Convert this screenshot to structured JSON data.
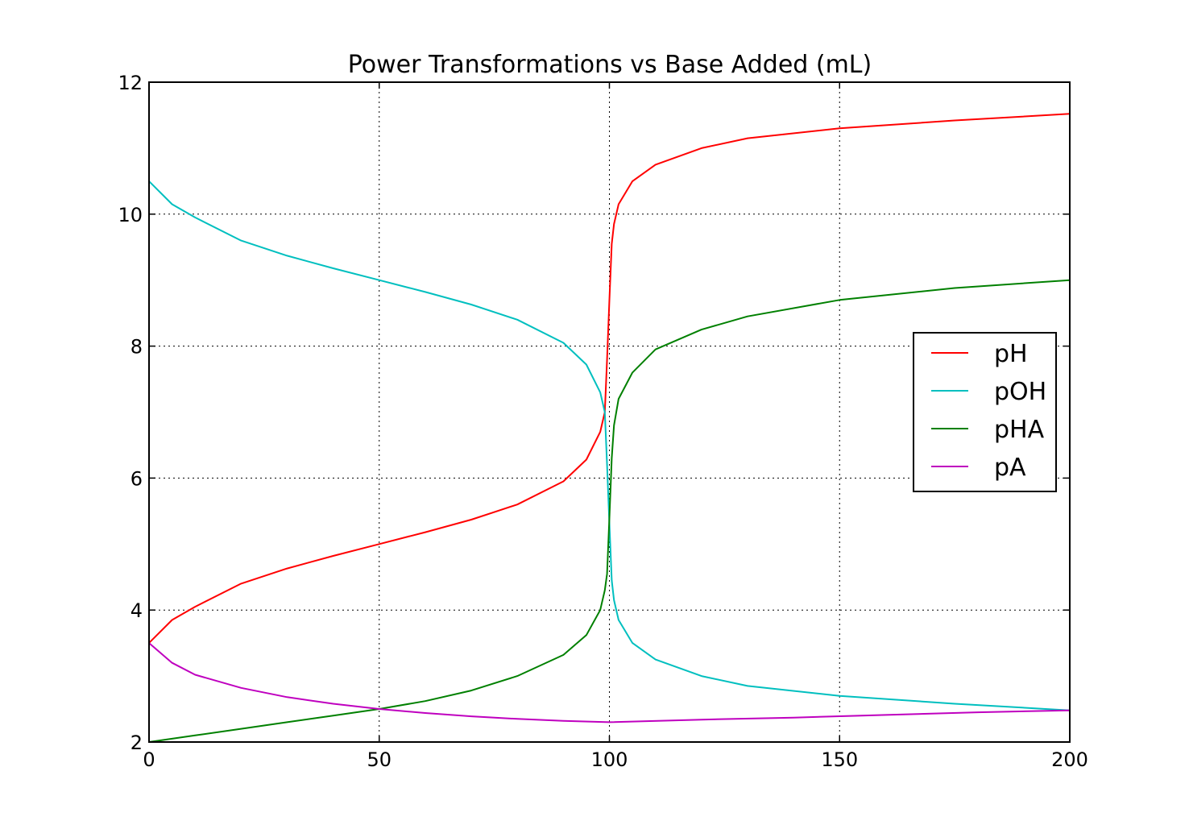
{
  "chart_data": {
    "type": "line",
    "title": "Power Transformations vs Base Added (mL)",
    "xlabel": "",
    "ylabel": "",
    "xlim": [
      0,
      200
    ],
    "ylim": [
      2,
      12
    ],
    "xticks": [
      0,
      50,
      100,
      150,
      200
    ],
    "yticks": [
      2,
      4,
      6,
      8,
      10,
      12
    ],
    "xtick_labels": [
      "0",
      "50",
      "100",
      "150",
      "200"
    ],
    "ytick_labels": [
      "2",
      "4",
      "6",
      "8",
      "10",
      "12"
    ],
    "grid": true,
    "legend_position": "center-right",
    "series": [
      {
        "name": "pH",
        "color": "#ff0000",
        "x": [
          0,
          5,
          10,
          20,
          30,
          40,
          50,
          60,
          70,
          80,
          90,
          95,
          98,
          99,
          99.5,
          100,
          100.5,
          101,
          102,
          105,
          110,
          120,
          130,
          150,
          175,
          200
        ],
        "y": [
          3.5,
          3.85,
          4.05,
          4.4,
          4.63,
          4.82,
          5.0,
          5.18,
          5.37,
          5.6,
          5.95,
          6.28,
          6.7,
          7.0,
          7.8,
          8.7,
          9.55,
          9.85,
          10.15,
          10.5,
          10.75,
          11.0,
          11.15,
          11.3,
          11.42,
          11.52
        ]
      },
      {
        "name": "pOH",
        "color": "#00bfbf",
        "x": [
          0,
          5,
          10,
          20,
          30,
          40,
          50,
          60,
          70,
          80,
          90,
          95,
          98,
          99,
          99.5,
          100,
          100.5,
          101,
          102,
          105,
          110,
          120,
          130,
          150,
          175,
          200
        ],
        "y": [
          10.5,
          10.15,
          9.95,
          9.6,
          9.37,
          9.18,
          9.0,
          8.82,
          8.63,
          8.4,
          8.05,
          7.72,
          7.3,
          7.0,
          6.2,
          5.3,
          4.45,
          4.15,
          3.85,
          3.5,
          3.25,
          3.0,
          2.85,
          2.7,
          2.58,
          2.48
        ]
      },
      {
        "name": "pHA",
        "color": "#008000",
        "x": [
          0,
          10,
          20,
          30,
          40,
          50,
          60,
          70,
          80,
          90,
          95,
          98,
          99,
          99.5,
          100,
          100.5,
          101,
          102,
          105,
          110,
          120,
          130,
          150,
          175,
          200
        ],
        "y": [
          2.0,
          2.1,
          2.2,
          2.3,
          2.4,
          2.5,
          2.62,
          2.78,
          3.0,
          3.32,
          3.62,
          4.0,
          4.3,
          4.55,
          5.4,
          6.3,
          6.8,
          7.2,
          7.6,
          7.95,
          8.25,
          8.45,
          8.7,
          8.88,
          9.0
        ]
      },
      {
        "name": "pA",
        "color": "#bf00bf",
        "x": [
          0,
          5,
          10,
          20,
          30,
          40,
          50,
          60,
          70,
          80,
          90,
          100,
          120,
          140,
          160,
          180,
          200
        ],
        "y": [
          3.5,
          3.2,
          3.02,
          2.82,
          2.68,
          2.58,
          2.5,
          2.44,
          2.39,
          2.35,
          2.32,
          2.3,
          2.34,
          2.37,
          2.41,
          2.45,
          2.48
        ]
      }
    ]
  }
}
